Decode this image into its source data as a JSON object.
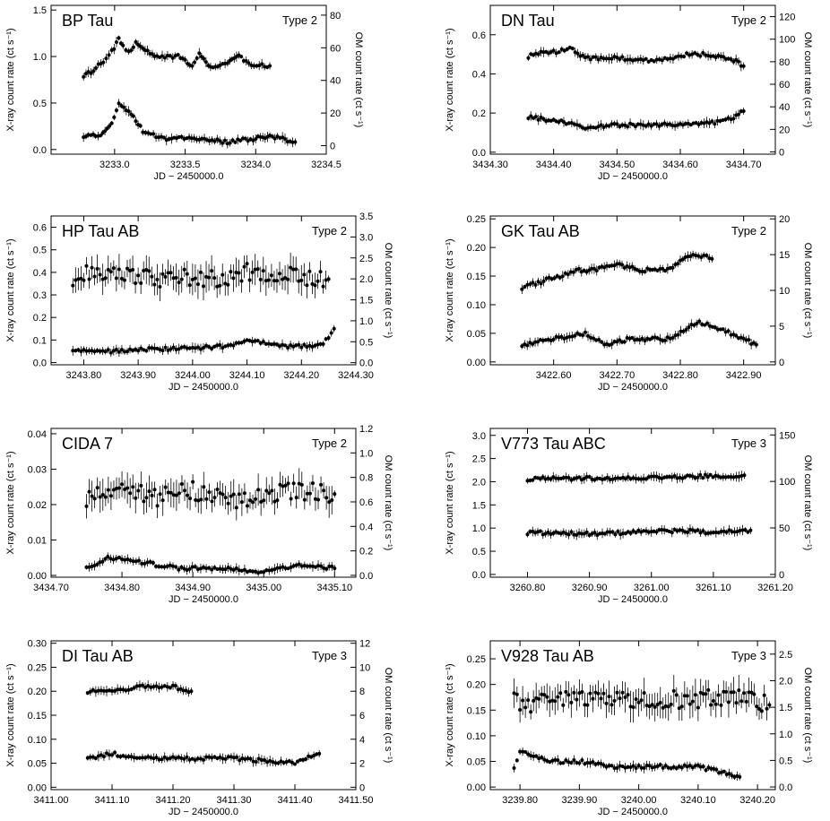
{
  "chart_data": [
    {
      "type": "scatter",
      "title": "BP Tau",
      "tag": "Type 2",
      "xlabel": "JD − 2450000.0",
      "ylabel": "X-ray count rate (ct s⁻¹)",
      "y2label": "OM count rate (ct s⁻¹)",
      "xlim": [
        3232.55,
        3234.5
      ],
      "ylim": [
        -0.05,
        1.55
      ],
      "y2lim": [
        -5.2,
        86
      ],
      "xticks": [
        "3233.0",
        "3233.5",
        "3234.0",
        "3234.5"
      ],
      "yticks": [
        "0.0",
        "0.5",
        "1.0",
        "1.5"
      ],
      "y2ticks": [
        "0",
        "20",
        "40",
        "60",
        "80"
      ],
      "series": [
        {
          "role": "om",
          "values": [
            [
              3232.78,
              0.8
            ],
            [
              3232.85,
              0.85
            ],
            [
              3232.92,
              0.95
            ],
            [
              3232.98,
              1.05
            ],
            [
              3233.03,
              1.18
            ],
            [
              3233.06,
              1.12
            ],
            [
              3233.1,
              1.05
            ],
            [
              3233.15,
              1.15
            ],
            [
              3233.2,
              1.08
            ],
            [
              3233.3,
              1.0
            ],
            [
              3233.45,
              1.0
            ],
            [
              3233.55,
              0.9
            ],
            [
              3233.6,
              1.05
            ],
            [
              3233.68,
              0.88
            ],
            [
              3233.8,
              0.92
            ],
            [
              3233.88,
              1.0
            ],
            [
              3233.95,
              0.92
            ],
            [
              3234.1,
              0.9
            ]
          ]
        },
        {
          "role": "xray",
          "values": [
            [
              3232.78,
              0.15
            ],
            [
              3232.9,
              0.15
            ],
            [
              3232.98,
              0.3
            ],
            [
              3233.03,
              0.48
            ],
            [
              3233.1,
              0.42
            ],
            [
              3233.2,
              0.2
            ],
            [
              3233.35,
              0.12
            ],
            [
              3233.6,
              0.12
            ],
            [
              3233.8,
              0.08
            ],
            [
              3234.0,
              0.12
            ],
            [
              3234.1,
              0.15
            ],
            [
              3234.28,
              0.08
            ]
          ]
        }
      ]
    },
    {
      "type": "scatter",
      "title": "DN Tau",
      "tag": "Type 2",
      "xlabel": "JD − 2450000.0",
      "ylabel": "X-ray count rate (ct s⁻¹)",
      "y2label": "OM count rate (ct s⁻¹)",
      "xlim": [
        3434.3,
        3434.75
      ],
      "ylim": [
        -0.01,
        0.75
      ],
      "y2lim": [
        -2,
        130
      ],
      "xticks": [
        "3434.30",
        "3434.40",
        "3434.50",
        "3434.60",
        "3434.70"
      ],
      "yticks": [
        "0.0",
        "0.2",
        "0.4",
        "0.6"
      ],
      "y2ticks": [
        "0",
        "20",
        "40",
        "60",
        "80",
        "100",
        "120"
      ],
      "series": [
        {
          "role": "om",
          "values": [
            [
              3434.36,
              0.49
            ],
            [
              3434.38,
              0.51
            ],
            [
              3434.4,
              0.51
            ],
            [
              3434.43,
              0.53
            ],
            [
              3434.45,
              0.48
            ],
            [
              3434.5,
              0.48
            ],
            [
              3434.55,
              0.47
            ],
            [
              3434.58,
              0.48
            ],
            [
              3434.61,
              0.5
            ],
            [
              3434.64,
              0.5
            ],
            [
              3434.68,
              0.48
            ],
            [
              3434.7,
              0.44
            ]
          ]
        },
        {
          "role": "xray",
          "values": [
            [
              3434.36,
              0.18
            ],
            [
              3434.38,
              0.17
            ],
            [
              3434.4,
              0.16
            ],
            [
              3434.42,
              0.15
            ],
            [
              3434.45,
              0.12
            ],
            [
              3434.5,
              0.14
            ],
            [
              3434.55,
              0.14
            ],
            [
              3434.6,
              0.14
            ],
            [
              3434.65,
              0.15
            ],
            [
              3434.68,
              0.17
            ],
            [
              3434.7,
              0.21
            ]
          ]
        }
      ]
    },
    {
      "type": "scatter",
      "title": "HP Tau AB",
      "tag": "Type 2",
      "xlabel": "JD − 2450000.0",
      "ylabel": "X-ray count rate (ct s⁻¹)",
      "y2label": "OM count rate (ct s⁻¹)",
      "xlim": [
        3243.74,
        3244.3
      ],
      "ylim": [
        -0.01,
        0.65
      ],
      "y2lim": [
        -0.05,
        3.5
      ],
      "xticks": [
        "3243.80",
        "3243.90",
        "3244.00",
        "3244.10",
        "3244.20",
        "3244.30"
      ],
      "yticks": [
        "0.0",
        "0.1",
        "0.2",
        "0.3",
        "0.4",
        "0.5",
        "0.6"
      ],
      "y2ticks": [
        "0.0",
        "0.5",
        "1.0",
        "1.5",
        "2.0",
        "2.5",
        "3.0",
        "3.5"
      ],
      "series": [
        {
          "role": "om",
          "values": [
            [
              3243.78,
              0.38
            ],
            [
              3243.79,
              0.4
            ],
            [
              3243.88,
              0.38
            ],
            [
              3243.95,
              0.37
            ],
            [
              3244.0,
              0.38
            ],
            [
              3244.05,
              0.37
            ],
            [
              3244.1,
              0.4
            ],
            [
              3244.15,
              0.4
            ],
            [
              3244.2,
              0.38
            ],
            [
              3244.25,
              0.37
            ]
          ]
        },
        {
          "role": "xray",
          "values": [
            [
              3243.78,
              0.05
            ],
            [
              3243.85,
              0.05
            ],
            [
              3243.95,
              0.06
            ],
            [
              3244.05,
              0.07
            ],
            [
              3244.11,
              0.1
            ],
            [
              3244.18,
              0.07
            ],
            [
              3244.24,
              0.08
            ],
            [
              3244.26,
              0.15
            ]
          ]
        }
      ]
    },
    {
      "type": "scatter",
      "title": "GK Tau AB",
      "tag": "Type 2",
      "xlabel": "JD − 2450000.0",
      "ylabel": "X-ray count rate (ct s⁻¹)",
      "y2label": "OM count rate (ct s⁻¹)",
      "xlim": [
        3422.5,
        3422.95
      ],
      "ylim": [
        -0.005,
        0.255
      ],
      "y2lim": [
        -0.4,
        20.4
      ],
      "xticks": [
        "3422.60",
        "3422.70",
        "3422.80",
        "3422.90"
      ],
      "yticks": [
        "0.00",
        "0.05",
        "0.10",
        "0.15",
        "0.20",
        "0.25"
      ],
      "y2ticks": [
        "0",
        "5",
        "10",
        "15",
        "20"
      ],
      "series": [
        {
          "role": "om",
          "values": [
            [
              3422.55,
              0.13
            ],
            [
              3422.58,
              0.14
            ],
            [
              3422.61,
              0.15
            ],
            [
              3422.64,
              0.16
            ],
            [
              3422.66,
              0.16
            ],
            [
              3422.7,
              0.17
            ],
            [
              3422.74,
              0.16
            ],
            [
              3422.78,
              0.16
            ],
            [
              3422.82,
              0.19
            ],
            [
              3422.85,
              0.18
            ]
          ]
        },
        {
          "role": "xray",
          "values": [
            [
              3422.55,
              0.03
            ],
            [
              3422.6,
              0.04
            ],
            [
              3422.65,
              0.05
            ],
            [
              3422.68,
              0.03
            ],
            [
              3422.72,
              0.04
            ],
            [
              3422.78,
              0.04
            ],
            [
              3422.83,
              0.07
            ],
            [
              3422.88,
              0.05
            ],
            [
              3422.92,
              0.03
            ]
          ]
        }
      ]
    },
    {
      "type": "scatter",
      "title": "CIDA 7",
      "tag": "Type 2",
      "xlabel": "JD − 2450000.0",
      "ylabel": "X-ray count rate (ct s⁻¹)",
      "y2label": "OM count rate (ct s⁻¹)",
      "xlim": [
        3434.7,
        3435.13
      ],
      "ylim": [
        -0.0005,
        0.0415
      ],
      "y2lim": [
        -0.015,
        1.2
      ],
      "xticks": [
        "3434.70",
        "3434.80",
        "3434.90",
        "3435.00",
        "3435.10"
      ],
      "yticks": [
        "0.00",
        "0.01",
        "0.02",
        "0.03",
        "0.04"
      ],
      "y2ticks": [
        "0.0",
        "0.2",
        "0.4",
        "0.6",
        "0.8",
        "1.0",
        "1.2"
      ],
      "series": [
        {
          "role": "om",
          "values": [
            [
              3434.75,
              0.022
            ],
            [
              3434.8,
              0.025
            ],
            [
              3434.85,
              0.022
            ],
            [
              3434.9,
              0.024
            ],
            [
              3434.95,
              0.021
            ],
            [
              3435.0,
              0.023
            ],
            [
              3435.05,
              0.024
            ],
            [
              3435.1,
              0.023
            ]
          ]
        },
        {
          "role": "xray",
          "values": [
            [
              3434.75,
              0.002
            ],
            [
              3434.78,
              0.005
            ],
            [
              3434.82,
              0.004
            ],
            [
              3434.88,
              0.002
            ],
            [
              3434.95,
              0.002
            ],
            [
              3435.0,
              0.001
            ],
            [
              3435.05,
              0.003
            ],
            [
              3435.1,
              0.002
            ]
          ]
        }
      ]
    },
    {
      "type": "scatter",
      "title": "V773 Tau ABC",
      "tag": "Type 3",
      "xlabel": "JD − 2450000.0",
      "ylabel": "X-ray count rate (ct s⁻¹)",
      "y2label": "OM count rate (ct s⁻¹)",
      "xlim": [
        3260.74,
        3261.2
      ],
      "ylim": [
        -0.06,
        3.15
      ],
      "y2lim": [
        -3,
        157
      ],
      "xticks": [
        "3260.80",
        "3260.90",
        "3261.00",
        "3261.10",
        "3261.20"
      ],
      "yticks": [
        "0.0",
        "0.5",
        "1.0",
        "1.5",
        "2.0",
        "2.5",
        "3.0"
      ],
      "y2ticks": [
        "0",
        "50",
        "100",
        "150"
      ],
      "series": [
        {
          "role": "om",
          "values": [
            [
              3260.8,
              2.06
            ],
            [
              3260.9,
              2.07
            ],
            [
              3261.0,
              2.08
            ],
            [
              3261.05,
              2.1
            ],
            [
              3261.12,
              2.13
            ],
            [
              3261.15,
              2.14
            ]
          ]
        },
        {
          "role": "xray",
          "values": [
            [
              3260.8,
              0.9
            ],
            [
              3260.9,
              0.88
            ],
            [
              3261.0,
              0.92
            ],
            [
              3261.05,
              0.95
            ],
            [
              3261.1,
              0.9
            ],
            [
              3261.16,
              0.95
            ]
          ]
        }
      ]
    },
    {
      "type": "scatter",
      "title": "DI Tau AB",
      "tag": "Type 3",
      "xlabel": "JD − 2450000.0",
      "ylabel": "X-ray count rate (ct s⁻¹)",
      "y2label": "OM count rate (ct s⁻¹)",
      "xlim": [
        3411.0,
        3411.5
      ],
      "ylim": [
        -0.005,
        0.305
      ],
      "y2lim": [
        -0.2,
        12.2
      ],
      "xticks": [
        "3411.00",
        "3411.10",
        "3411.20",
        "3411.30",
        "3411.40",
        "3411.50"
      ],
      "yticks": [
        "0.00",
        "0.05",
        "0.10",
        "0.15",
        "0.20",
        "0.25",
        "0.30"
      ],
      "y2ticks": [
        "0",
        "2",
        "4",
        "6",
        "8",
        "10",
        "12"
      ],
      "series": [
        {
          "role": "om",
          "values": [
            [
              3411.06,
              0.2
            ],
            [
              3411.1,
              0.2
            ],
            [
              3411.15,
              0.21
            ],
            [
              3411.2,
              0.21
            ],
            [
              3411.23,
              0.2
            ]
          ]
        },
        {
          "role": "xray",
          "values": [
            [
              3411.06,
              0.06
            ],
            [
              3411.1,
              0.07
            ],
            [
              3411.15,
              0.06
            ],
            [
              3411.2,
              0.06
            ],
            [
              3411.3,
              0.06
            ],
            [
              3411.4,
              0.05
            ],
            [
              3411.44,
              0.07
            ]
          ]
        }
      ]
    },
    {
      "type": "scatter",
      "title": "V928 Tau AB",
      "tag": "Type 3",
      "xlabel": "JD − 2450000.0",
      "ylabel": "X-ray count rate (ct s⁻¹)",
      "y2label": "OM count rate (ct s⁻¹)",
      "xlim": [
        3239.75,
        3240.23
      ],
      "ylim": [
        -0.005,
        0.285
      ],
      "y2lim": [
        -0.05,
        2.75
      ],
      "xticks": [
        "3239.80",
        "3239.90",
        "3240.00",
        "3240.10",
        "3240.20"
      ],
      "yticks": [
        "0.00",
        "0.05",
        "0.10",
        "0.15",
        "0.20",
        "0.25"
      ],
      "y2ticks": [
        "0.0",
        "0.5",
        "1.0",
        "1.5",
        "2.0",
        "2.5"
      ],
      "series": [
        {
          "role": "om",
          "values": [
            [
              3239.79,
              0.2
            ],
            [
              3239.8,
              0.15
            ],
            [
              3239.85,
              0.17
            ],
            [
              3239.9,
              0.17
            ],
            [
              3239.95,
              0.17
            ],
            [
              3240.0,
              0.17
            ],
            [
              3240.05,
              0.17
            ],
            [
              3240.1,
              0.17
            ],
            [
              3240.16,
              0.18
            ],
            [
              3240.22,
              0.16
            ]
          ]
        },
        {
          "role": "xray",
          "values": [
            [
              3239.79,
              0.04
            ],
            [
              3239.8,
              0.07
            ],
            [
              3239.85,
              0.05
            ],
            [
              3239.9,
              0.05
            ],
            [
              3239.95,
              0.04
            ],
            [
              3240.0,
              0.04
            ],
            [
              3240.05,
              0.04
            ],
            [
              3240.1,
              0.04
            ],
            [
              3240.17,
              0.02
            ]
          ]
        }
      ]
    }
  ]
}
